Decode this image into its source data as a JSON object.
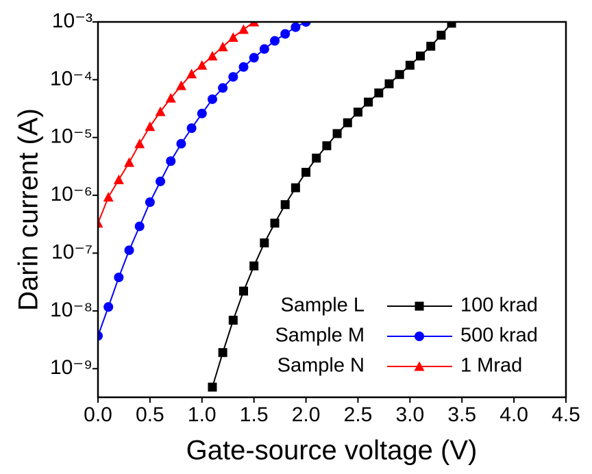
{
  "chart_data": {
    "type": "line",
    "y_label": "Darin current (A)",
    "x_label": "Gate-source voltage (V)",
    "log_y": true,
    "xlim": [
      0,
      4.5
    ],
    "ylim": [
      3.2e-10,
      0.001
    ],
    "xticks": [
      {
        "value": 0,
        "label": "0.0"
      },
      0.5,
      {
        "value": 1,
        "label": "1.0"
      },
      1.5,
      {
        "value": 2,
        "label": "2.0"
      },
      2.5,
      {
        "value": 3,
        "label": "3.0"
      },
      3.5,
      {
        "value": 4,
        "label": "4.0"
      },
      4.5
    ],
    "yticks": [
      {
        "value": 1e-09,
        "label": "10⁻⁹"
      },
      {
        "value": 1e-08,
        "label": "10⁻⁸"
      },
      {
        "value": 1e-07,
        "label": "10⁻⁷"
      },
      {
        "value": 1e-06,
        "label": "10⁻⁶"
      },
      {
        "value": 1e-05,
        "label": "10⁻⁵"
      },
      {
        "value": 0.0001,
        "label": "10⁻⁴"
      },
      {
        "value": 0.001,
        "label": "10⁻³"
      }
    ],
    "legend_position": "lower right",
    "series": [
      {
        "name": "100 krad",
        "sample": "Sample L",
        "color": "#000000",
        "marker": "square",
        "x": [
          1.1,
          1.2,
          1.3,
          1.4,
          1.5,
          1.6,
          1.7,
          1.8,
          1.9,
          2.0,
          2.1,
          2.2,
          2.3,
          2.4,
          2.5,
          2.6,
          2.7,
          2.8,
          2.9,
          3.0,
          3.1,
          3.2,
          3.3,
          3.4
        ],
        "values": [
          4.8e-10,
          1.9e-09,
          6.9e-09,
          2.2e-08,
          6e-08,
          1.5e-07,
          3.3e-07,
          6.9e-07,
          1.35e-06,
          2.5e-06,
          4.4e-06,
          7.2e-06,
          1.17e-05,
          1.8e-05,
          2.75e-05,
          4.1e-05,
          5.9e-05,
          8.5e-05,
          0.000123,
          0.000178,
          0.000257,
          0.00038,
          0.00059,
          0.00095
        ]
      },
      {
        "name": "500 krad",
        "sample": "Sample M",
        "color": "#0000ff",
        "marker": "circle",
        "x": [
          0,
          0.1,
          0.2,
          0.3,
          0.4,
          0.5,
          0.6,
          0.7,
          0.8,
          0.9,
          1.0,
          1.1,
          1.2,
          1.3,
          1.4,
          1.5,
          1.6,
          1.7,
          1.8,
          1.9,
          2.0
        ],
        "values": [
          3.7e-09,
          1.17e-08,
          3.8e-08,
          1.12e-07,
          2.9e-07,
          7.6e-07,
          1.74e-06,
          3.9e-06,
          7.8e-06,
          1.45e-05,
          2.6e-05,
          4.6e-05,
          7.2e-05,
          0.000112,
          0.000166,
          0.00024,
          0.00034,
          0.00047,
          0.00062,
          0.00081,
          0.001
        ]
      },
      {
        "name": "1 Mrad",
        "sample": "Sample N",
        "color": "#ff0000",
        "marker": "triangle",
        "x": [
          0,
          0.1,
          0.2,
          0.3,
          0.4,
          0.5,
          0.6,
          0.7,
          0.8,
          0.9,
          1.0,
          1.1,
          1.2,
          1.3,
          1.4,
          1.5
        ],
        "values": [
          3.3e-07,
          9.3e-07,
          1.86e-06,
          3.7e-06,
          7.8e-06,
          1.55e-05,
          2.8e-05,
          4.8e-05,
          7.9e-05,
          0.000126,
          0.000178,
          0.000257,
          0.00037,
          0.00054,
          0.00074,
          0.001
        ]
      }
    ]
  }
}
